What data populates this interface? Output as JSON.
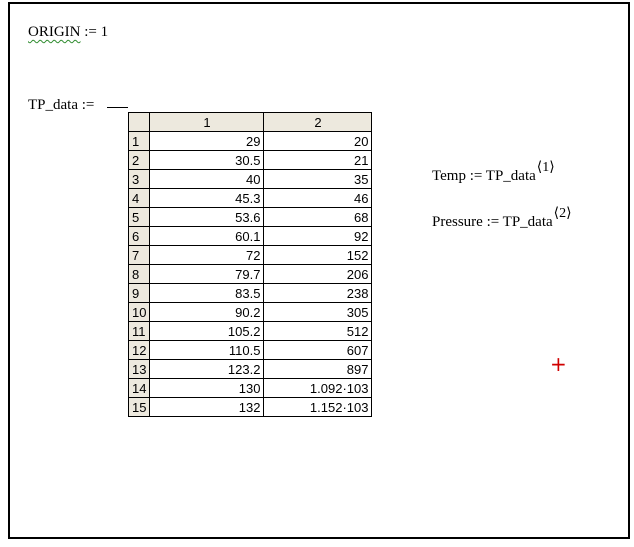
{
  "origin": {
    "lhs": "ORIGIN",
    "op": ":=",
    "rhs": "1"
  },
  "tp_data": {
    "lhs": "TP_data",
    "op": ":="
  },
  "matrix": {
    "column_headers": [
      "1",
      "2"
    ],
    "rows": [
      {
        "index": "1",
        "c1": "29",
        "c2": "20"
      },
      {
        "index": "2",
        "c1": "30.5",
        "c2": "21"
      },
      {
        "index": "3",
        "c1": "40",
        "c2": "35"
      },
      {
        "index": "4",
        "c1": "45.3",
        "c2": "46"
      },
      {
        "index": "5",
        "c1": "53.6",
        "c2": "68"
      },
      {
        "index": "6",
        "c1": "60.1",
        "c2": "92"
      },
      {
        "index": "7",
        "c1": "72",
        "c2": "152"
      },
      {
        "index": "8",
        "c1": "79.7",
        "c2": "206"
      },
      {
        "index": "9",
        "c1": "83.5",
        "c2": "238"
      },
      {
        "index": "10",
        "c1": "90.2",
        "c2": "305"
      },
      {
        "index": "11",
        "c1": "105.2",
        "c2": "512"
      },
      {
        "index": "12",
        "c1": "110.5",
        "c2": "607"
      },
      {
        "index": "13",
        "c1": "123.2",
        "c2": "897"
      },
      {
        "index": "14",
        "c1": "130",
        "c2": "1.092·103"
      },
      {
        "index": "15",
        "c1": "132",
        "c2": "1.152·103"
      }
    ]
  },
  "temp": {
    "text": "Temp := TP_data",
    "superscript": "⟨1⟩"
  },
  "pressure": {
    "text": "Pressure := TP_data",
    "superscript": "⟨2⟩"
  },
  "cursor_glyph": "+",
  "colors": {
    "header_bg": "#ede9de",
    "cursor": "#d00000",
    "squiggle": "#2e8b2e"
  }
}
